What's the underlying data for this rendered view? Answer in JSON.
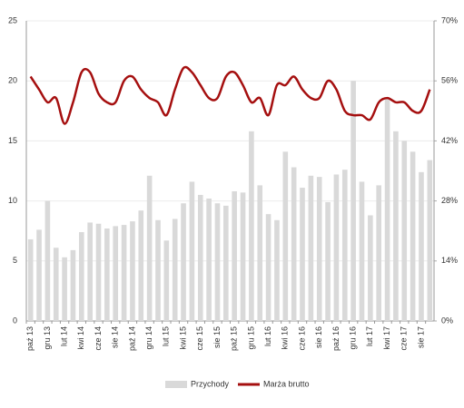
{
  "chart_data": {
    "type": "bar-line",
    "categories": [
      "paź 13",
      null,
      "gru 13",
      null,
      "lut 14",
      null,
      "kwi 14",
      null,
      "cze 14",
      null,
      "sie 14",
      null,
      "paź 14",
      null,
      "gru 14",
      null,
      "lut 15",
      null,
      "kwi 15",
      null,
      "cze 15",
      null,
      "sie 15",
      null,
      "paź 15",
      null,
      "gru 15",
      null,
      "lut 16",
      null,
      "kwi 16",
      null,
      "cze 16",
      null,
      "sie 16",
      null,
      "paź 16",
      null,
      "gru 16",
      null,
      "lut 17",
      null,
      "kwi 17",
      null,
      "cze 17",
      null,
      "sie 17",
      null
    ],
    "series": [
      {
        "name": "Przychody",
        "color": "#d9d9d9",
        "kind": "bar",
        "axis": "y",
        "values": [
          6.8,
          7.6,
          10.0,
          6.1,
          5.3,
          5.9,
          7.4,
          8.2,
          8.1,
          7.7,
          7.9,
          8.0,
          8.3,
          9.2,
          12.1,
          8.4,
          6.7,
          8.5,
          9.8,
          11.6,
          10.5,
          10.2,
          9.8,
          9.6,
          10.8,
          10.7,
          15.8,
          11.3,
          8.9,
          8.4,
          14.1,
          12.8,
          11.1,
          12.1,
          12.0,
          9.9,
          12.2,
          12.6,
          20.0,
          11.6,
          8.8,
          11.3,
          18.5,
          15.8,
          15.0,
          14.1,
          12.4,
          13.4
        ]
      },
      {
        "name": "Marża brutto",
        "color": "#a50f0f",
        "kind": "line",
        "axis": "y2",
        "values": [
          57,
          54,
          51,
          52,
          46,
          51,
          58,
          58,
          53,
          51,
          51,
          56,
          57,
          54,
          52,
          51,
          48,
          54,
          59,
          58,
          55,
          52,
          52,
          57,
          58,
          55,
          51,
          52,
          48,
          55,
          55,
          57,
          54,
          52,
          52,
          56,
          54,
          49,
          48,
          48,
          47,
          51,
          52,
          51,
          51,
          49,
          49,
          54
        ]
      }
    ],
    "ylim": [
      0,
      25
    ],
    "yticks": [
      0,
      5,
      10,
      15,
      20,
      25
    ],
    "y2lim": [
      0,
      70
    ],
    "y2ticks": [
      {
        "value": 0,
        "label": "0%"
      },
      {
        "value": 14,
        "label": "14%"
      },
      {
        "value": 28,
        "label": "28%"
      },
      {
        "value": 42,
        "label": "42%"
      },
      {
        "value": 56,
        "label": "56%"
      },
      {
        "value": 70,
        "label": "70%"
      }
    ],
    "grid": true,
    "legend": "bottom"
  }
}
